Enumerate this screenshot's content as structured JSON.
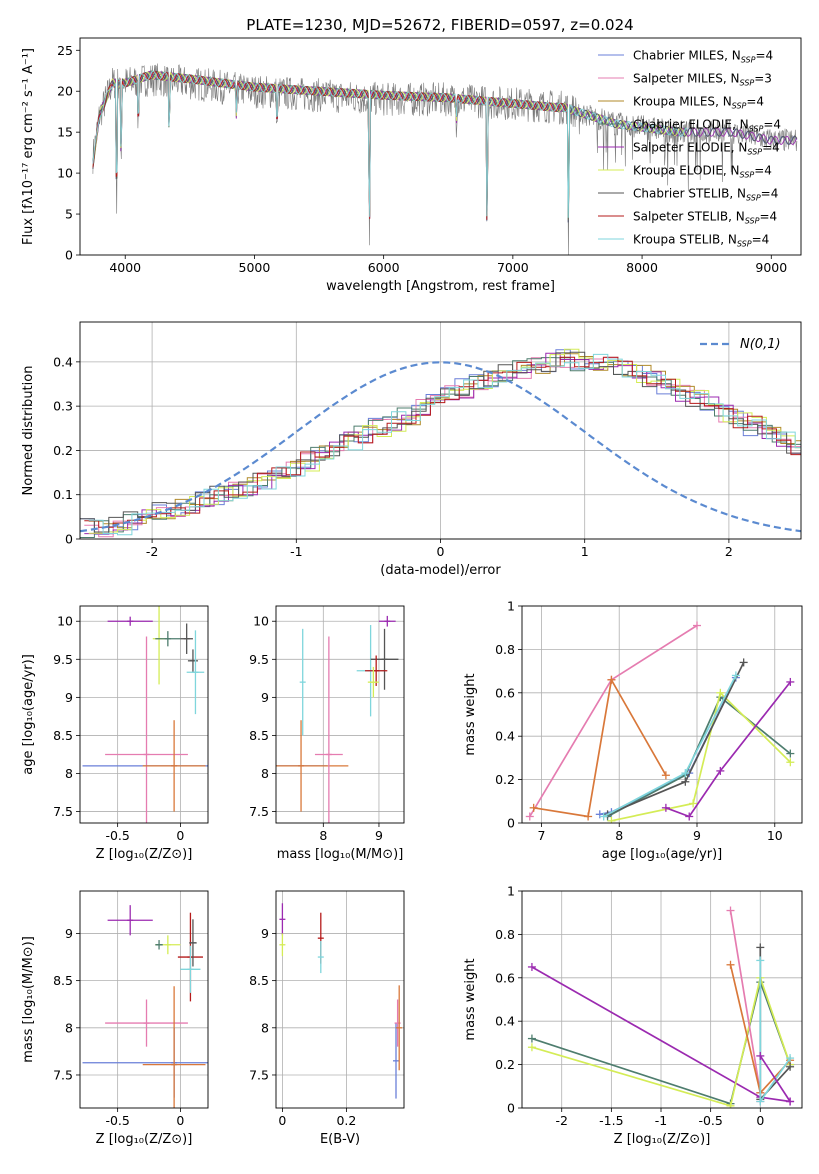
{
  "title": "PLATE=1230, MJD=52672, FIBERID=0597, z=0.024",
  "colors": {
    "Chabrier MILES": "#6a7fd8",
    "Salpeter MILES": "#e57cb0",
    "Kroupa MILES": "#b08a2a",
    "Chabrier ELODIE": "#4e7d6e",
    "Salpeter ELODIE": "#9b2ab0",
    "Kroupa ELODIE": "#d4ec56",
    "Chabrier STELIB": "#555555",
    "Salpeter STELIB": "#b51b1b",
    "Kroupa STELIB": "#7fd6dc",
    "orange": "#d9783a",
    "normal": "#5b8ad0",
    "grid": "#b0b0b0"
  },
  "chart_data": [
    {
      "id": "spectrum",
      "type": "line",
      "xlabel": "wavelength [Angstrom, rest frame]",
      "ylabel": "Flux [fλ10⁻¹⁷ erg cm⁻² s⁻¹ A⁻¹]",
      "xlim": [
        3650,
        9230
      ],
      "ylim": [
        0,
        26.5
      ],
      "xticks": [
        4000,
        5000,
        6000,
        7000,
        8000,
        9000
      ],
      "yticks": [
        0,
        5,
        10,
        15,
        20,
        25
      ],
      "grid": false,
      "legend_position": "top-right",
      "legend": [
        {
          "name": "Chabrier MILES",
          "n_ssp": "4"
        },
        {
          "name": "Salpeter MILES",
          "n_ssp": "3"
        },
        {
          "name": "Kroupa MILES",
          "n_ssp": "4"
        },
        {
          "name": "Chabrier ELODIE",
          "n_ssp": "4"
        },
        {
          "name": "Salpeter ELODIE",
          "n_ssp": "4"
        },
        {
          "name": "Kroupa ELODIE",
          "n_ssp": "4"
        },
        {
          "name": "Chabrier STELIB",
          "n_ssp": "4"
        },
        {
          "name": "Salpeter STELIB",
          "n_ssp": "4"
        },
        {
          "name": "Kroupa STELIB",
          "n_ssp": "4"
        }
      ],
      "data_continuum": [
        [
          3750,
          12
        ],
        [
          3800,
          17
        ],
        [
          3900,
          21
        ],
        [
          4000,
          21
        ],
        [
          4200,
          21.5
        ],
        [
          4500,
          21
        ],
        [
          5000,
          20
        ],
        [
          5500,
          19.5
        ],
        [
          6000,
          19
        ],
        [
          6500,
          19
        ],
        [
          7000,
          18.5
        ],
        [
          7400,
          18
        ],
        [
          7800,
          16
        ],
        [
          8300,
          15
        ],
        [
          8700,
          15
        ],
        [
          9000,
          14
        ]
      ],
      "model_continuum": [
        [
          3750,
          11
        ],
        [
          3800,
          17
        ],
        [
          3900,
          21
        ],
        [
          4000,
          21
        ],
        [
          4200,
          22
        ],
        [
          4500,
          21.5
        ],
        [
          5000,
          20.5
        ],
        [
          5500,
          20
        ],
        [
          6000,
          19.5
        ],
        [
          6500,
          19.2
        ],
        [
          7000,
          18.5
        ],
        [
          7350,
          18
        ]
      ],
      "model_extent": [
        [
          3750,
          9200
        ],
        [
          3750,
          7420
        ],
        [
          3750,
          7450
        ],
        [
          3750,
          8350
        ],
        [
          3750,
          9200
        ],
        [
          3750,
          8350
        ],
        [
          3750,
          9200
        ],
        [
          3750,
          7420
        ],
        [
          3750,
          8350
        ]
      ],
      "absorption_features": [
        [
          3933,
          3
        ],
        [
          3968,
          10
        ],
        [
          4101,
          14
        ],
        [
          4340,
          13
        ],
        [
          4861,
          16
        ],
        [
          5175,
          15
        ],
        [
          5890,
          0
        ],
        [
          6563,
          17
        ],
        [
          6800,
          0
        ],
        [
          7430,
          0
        ]
      ]
    },
    {
      "id": "residuals",
      "type": "step",
      "xlabel": "(data-model)/error",
      "ylabel": "Normed distribution",
      "xlim": [
        -2.5,
        2.5
      ],
      "ylim": [
        0,
        0.49
      ],
      "xticks": [
        -2,
        -1,
        0,
        1,
        2
      ],
      "yticks": [
        0.0,
        0.1,
        0.2,
        0.3,
        0.4
      ],
      "grid": true,
      "legend_position": "top-right",
      "legend_label": "N(0,1)",
      "bin_width": 0.1,
      "bin_start": -2.5,
      "base_hist": [
        0.025,
        0.022,
        0.03,
        0.04,
        0.05,
        0.06,
        0.07,
        0.08,
        0.09,
        0.1,
        0.11,
        0.12,
        0.135,
        0.15,
        0.16,
        0.175,
        0.19,
        0.205,
        0.22,
        0.235,
        0.25,
        0.265,
        0.28,
        0.3,
        0.315,
        0.33,
        0.34,
        0.355,
        0.365,
        0.375,
        0.385,
        0.395,
        0.4,
        0.41,
        0.4,
        0.4,
        0.39,
        0.38,
        0.37,
        0.36,
        0.345,
        0.33,
        0.315,
        0.3,
        0.285,
        0.27,
        0.255,
        0.24,
        0.225,
        0.21,
        0.195,
        0.18,
        0.165,
        0.15,
        0.14,
        0.125,
        0.115,
        0.1,
        0.09,
        0.08,
        0.07,
        0.06,
        0.055,
        0.05,
        0.045,
        0.04,
        0.035,
        0.03,
        0.028,
        0.025,
        0.02
      ],
      "normal_curve": {
        "mean": 0,
        "sigma": 1
      }
    },
    {
      "id": "age_vs_Z",
      "type": "errorbar",
      "xlabel": "Z [log₁₀(Z/Z⊙)]",
      "ylabel": "age  [log₁₀(age/yr)]",
      "xlim": [
        -0.8,
        0.22
      ],
      "ylim": [
        7.35,
        10.2
      ],
      "xticks": [
        -0.5,
        0.0
      ],
      "yticks": [
        7.5,
        8.0,
        8.5,
        9.0,
        9.5,
        10.0
      ],
      "grid": true,
      "points": [
        {
          "model": "Salpeter ELODIE",
          "x": -0.4,
          "xerr": 0.18,
          "y": 10.0,
          "yerr": 0.06
        },
        {
          "model": "Salpeter MILES",
          "x": -0.27,
          "xerr": 0.33,
          "y": 8.25,
          "yerr": 1.55
        },
        {
          "model": "Chabrier MILES",
          "x": -0.05,
          "xerr": 0.73,
          "y": 8.1,
          "yerr": 0.0
        },
        {
          "model": "orange",
          "x": -0.05,
          "xerr": 0.25,
          "y": 8.1,
          "yerr": 0.6
        },
        {
          "model": "Kroupa ELODIE",
          "x": -0.17,
          "xerr": 0.05,
          "y": 9.77,
          "yerr": 0.6
        },
        {
          "model": "Chabrier ELODIE",
          "x": -0.1,
          "xerr": 0.1,
          "y": 9.77,
          "yerr": 0.1
        },
        {
          "model": "Chabrier STELIB",
          "x": 0.1,
          "xerr": 0.04,
          "y": 9.48,
          "yerr": 0.15
        },
        {
          "model": "Kroupa STELIB",
          "x": 0.12,
          "xerr": 0.07,
          "y": 9.33,
          "yerr": 0.55
        },
        {
          "model": "Chabrier STELIB",
          "x": 0.05,
          "xerr": 0.05,
          "y": 9.77,
          "yerr": 0.2
        }
      ]
    },
    {
      "id": "age_vs_mass",
      "type": "errorbar",
      "xlabel": "mass [log₁₀(M/M⊙)]",
      "ylabel": "",
      "xlim": [
        7.15,
        9.45
      ],
      "ylim": [
        7.35,
        10.2
      ],
      "xticks": [
        8,
        9
      ],
      "yticks": [
        7.5,
        8.0,
        8.5,
        9.0,
        9.5,
        10.0
      ],
      "grid": true,
      "points": [
        {
          "model": "Chabrier MILES",
          "x": 7.6,
          "xerr": 0.47,
          "y": 8.1,
          "yerr": 0.0
        },
        {
          "model": "orange",
          "x": 7.6,
          "xerr": 0.85,
          "y": 8.1,
          "yerr": 0.6
        },
        {
          "model": "Kroupa STELIB",
          "x": 7.63,
          "xerr": 0.0,
          "y": 9.2,
          "yerr": 0.7
        },
        {
          "model": "Salpeter MILES",
          "x": 8.1,
          "xerr": 0.25,
          "y": 8.25,
          "yerr": 1.55
        },
        {
          "model": "Salpeter ELODIE",
          "x": 9.15,
          "xerr": 0.15,
          "y": 10.0,
          "yerr": 0.07
        },
        {
          "model": "Kroupa STELIB",
          "x": 8.85,
          "xerr": 0.25,
          "y": 9.35,
          "yerr": 0.6
        },
        {
          "model": "Chabrier STELIB",
          "x": 9.1,
          "xerr": 0.25,
          "y": 9.5,
          "yerr": 0.4
        },
        {
          "model": "Salpeter STELIB",
          "x": 8.95,
          "xerr": 0.2,
          "y": 9.35,
          "yerr": 0.2
        },
        {
          "model": "Kroupa ELODIE",
          "x": 8.9,
          "xerr": 0.1,
          "y": 9.2,
          "yerr": 0.2
        }
      ]
    },
    {
      "id": "mw_vs_age",
      "type": "line",
      "xlabel": "age  [log₁₀(age/yr)]",
      "ylabel": "mass weight",
      "xlim": [
        6.75,
        10.35
      ],
      "ylim": [
        0,
        1.0
      ],
      "xticks": [
        7,
        8,
        9,
        10
      ],
      "yticks": [
        0.0,
        0.2,
        0.4,
        0.6,
        0.8,
        1.0
      ],
      "grid": true,
      "series": [
        {
          "model": "Salpeter MILES",
          "x": [
            6.85,
            7.9,
            9.0
          ],
          "y": [
            0.03,
            0.66,
            0.91
          ]
        },
        {
          "model": "orange",
          "x": [
            6.9,
            7.6,
            7.9,
            8.6
          ],
          "y": [
            0.07,
            0.03,
            0.66,
            0.22
          ]
        },
        {
          "model": "Chabrier MILES",
          "x": [
            7.75,
            7.9,
            8.9,
            9.5
          ],
          "y": [
            0.04,
            0.05,
            0.23,
            0.67
          ]
        },
        {
          "model": "Chabrier ELODIE",
          "x": [
            7.85,
            8.85,
            9.3,
            10.2
          ],
          "y": [
            0.03,
            0.22,
            0.58,
            0.32
          ]
        },
        {
          "model": "Kroupa ELODIE",
          "x": [
            7.9,
            8.95,
            9.3,
            10.2
          ],
          "y": [
            0.01,
            0.09,
            0.6,
            0.28
          ]
        },
        {
          "model": "Chabrier STELIB",
          "x": [
            7.85,
            8.85,
            9.6
          ],
          "y": [
            0.04,
            0.19,
            0.74
          ]
        },
        {
          "model": "Salpeter ELODIE",
          "x": [
            8.6,
            8.9,
            9.3,
            10.2
          ],
          "y": [
            0.07,
            0.03,
            0.24,
            0.65
          ]
        },
        {
          "model": "Kroupa STELIB",
          "x": [
            7.8,
            8.85,
            9.5
          ],
          "y": [
            0.03,
            0.23,
            0.68
          ]
        }
      ]
    },
    {
      "id": "mass_vs_Z",
      "type": "errorbar",
      "xlabel": "Z [log₁₀(Z/Z⊙)]",
      "ylabel": "mass [log₁₀(M/M⊙)]",
      "xlim": [
        -0.8,
        0.22
      ],
      "ylim": [
        7.15,
        9.45
      ],
      "xticks": [
        -0.5,
        0.0
      ],
      "yticks": [
        7.5,
        8.0,
        8.5,
        9.0
      ],
      "grid": true,
      "points": [
        {
          "model": "Salpeter ELODIE",
          "x": -0.4,
          "xerr": 0.18,
          "y": 9.14,
          "yerr": 0.16
        },
        {
          "model": "Salpeter MILES",
          "x": -0.27,
          "xerr": 0.33,
          "y": 8.05,
          "yerr": 0.25
        },
        {
          "model": "Chabrier MILES",
          "x": -0.05,
          "xerr": 0.73,
          "y": 7.63,
          "yerr": 0.37
        },
        {
          "model": "orange",
          "x": -0.05,
          "xerr": 0.25,
          "y": 7.61,
          "yerr": 0.83
        },
        {
          "model": "Kroupa ELODIE",
          "x": -0.1,
          "xerr": 0.1,
          "y": 8.88,
          "yerr": 0.1
        },
        {
          "model": "Chabrier ELODIE",
          "x": -0.17,
          "xerr": 0.03,
          "y": 8.88,
          "yerr": 0.05
        },
        {
          "model": "Salpeter STELIB",
          "x": 0.08,
          "xerr": 0.1,
          "y": 8.75,
          "yerr": 0.47
        },
        {
          "model": "Kroupa STELIB",
          "x": 0.08,
          "xerr": 0.08,
          "y": 8.62,
          "yerr": 0.25
        },
        {
          "model": "Chabrier STELIB",
          "x": 0.1,
          "xerr": 0.03,
          "y": 8.9,
          "yerr": 0.25
        }
      ]
    },
    {
      "id": "mass_vs_EBV",
      "type": "errorbar",
      "xlabel": "E(B-V)",
      "ylabel": "",
      "xlim": [
        -0.02,
        0.38
      ],
      "ylim": [
        7.15,
        9.45
      ],
      "xticks": [
        0.0,
        0.2
      ],
      "yticks": [
        7.5,
        8.0,
        8.5,
        9.0
      ],
      "grid": true,
      "points": [
        {
          "model": "Salpeter ELODIE",
          "x": 0.0,
          "xerr": 0.0,
          "y": 9.15,
          "yerr": 0.17
        },
        {
          "model": "Kroupa ELODIE",
          "x": 0.0,
          "xerr": 0.0,
          "y": 8.88,
          "yerr": 0.12
        },
        {
          "model": "Salpeter STELIB",
          "x": 0.12,
          "xerr": 0.0,
          "y": 8.95,
          "yerr": 0.27
        },
        {
          "model": "Kroupa STELIB",
          "x": 0.12,
          "xerr": 0.0,
          "y": 8.75,
          "yerr": 0.17
        },
        {
          "model": "Chabrier MILES",
          "x": 0.355,
          "xerr": 0.0,
          "y": 7.65,
          "yerr": 0.4
        },
        {
          "model": "Salpeter MILES",
          "x": 0.36,
          "xerr": 0.0,
          "y": 8.05,
          "yerr": 0.25
        },
        {
          "model": "orange",
          "x": 0.365,
          "xerr": 0.0,
          "y": 8.0,
          "yerr": 0.45
        }
      ]
    },
    {
      "id": "mw_vs_Z",
      "type": "line",
      "xlabel": "Z [log₁₀(Z/Z⊙)]",
      "ylabel": "mass weight",
      "xlim": [
        -2.4,
        0.42
      ],
      "ylim": [
        0,
        1.0
      ],
      "xticks": [
        -2.0,
        -1.5,
        -1.0,
        -0.5,
        0.0
      ],
      "yticks": [
        0.0,
        0.2,
        0.4,
        0.6,
        0.8,
        1.0
      ],
      "grid": true,
      "series": [
        {
          "model": "Salpeter ELODIE",
          "x": [
            -2.3,
            0.0,
            0.3
          ],
          "y": [
            0.65,
            0.05,
            0.03
          ]
        },
        {
          "model": "Chabrier ELODIE",
          "x": [
            -2.3,
            -0.3,
            0.0,
            0.3
          ],
          "y": [
            0.32,
            0.02,
            0.58,
            0.2
          ]
        },
        {
          "model": "Kroupa ELODIE",
          "x": [
            -2.3,
            -0.3,
            0.0,
            0.3
          ],
          "y": [
            0.28,
            0.01,
            0.6,
            0.2
          ]
        },
        {
          "model": "Salpeter MILES",
          "x": [
            -0.3,
            0.0,
            0.0
          ],
          "y": [
            0.91,
            0.07,
            0.03
          ]
        },
        {
          "model": "orange",
          "x": [
            -0.3,
            0.0,
            0.3
          ],
          "y": [
            0.66,
            0.07,
            0.22
          ]
        },
        {
          "model": "Chabrier STELIB",
          "x": [
            0.0,
            0.0,
            0.3
          ],
          "y": [
            0.74,
            0.04,
            0.19
          ]
        },
        {
          "model": "Kroupa STELIB",
          "x": [
            0.0,
            0.0,
            0.3
          ],
          "y": [
            0.68,
            0.03,
            0.23
          ]
        },
        {
          "model": "Salpeter ELODIE",
          "x": [
            0.0,
            0.3
          ],
          "y": [
            0.24,
            0.03
          ]
        }
      ]
    }
  ]
}
